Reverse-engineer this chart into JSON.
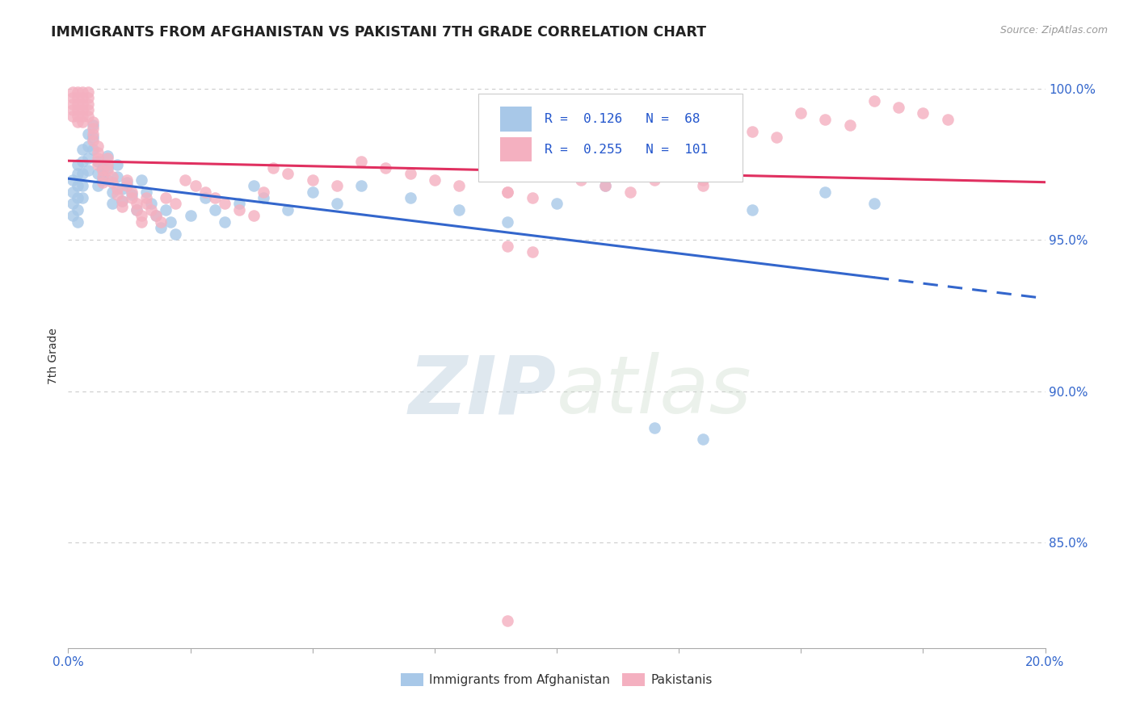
{
  "title": "IMMIGRANTS FROM AFGHANISTAN VS PAKISTANI 7TH GRADE CORRELATION CHART",
  "source": "Source: ZipAtlas.com",
  "ylabel": "7th Grade",
  "legend_blue_R": "0.126",
  "legend_blue_N": "68",
  "legend_pink_R": "0.255",
  "legend_pink_N": "101",
  "blue_color": "#a8c8e8",
  "pink_color": "#f4b0c0",
  "blue_line_color": "#3366cc",
  "pink_line_color": "#e03060",
  "watermark_zip": "ZIP",
  "watermark_atlas": "atlas",
  "x_min": 0.0,
  "x_max": 0.2,
  "y_min": 0.815,
  "y_max": 1.008,
  "right_ytick_vals": [
    1.0,
    0.95,
    0.9,
    0.85
  ],
  "right_ytick_labels": [
    "100.0%",
    "95.0%",
    "90.0%",
    "85.0%"
  ],
  "blue_x": [
    0.001,
    0.001,
    0.001,
    0.001,
    0.002,
    0.002,
    0.002,
    0.002,
    0.002,
    0.002,
    0.003,
    0.003,
    0.003,
    0.003,
    0.003,
    0.004,
    0.004,
    0.004,
    0.004,
    0.005,
    0.005,
    0.005,
    0.006,
    0.006,
    0.006,
    0.007,
    0.007,
    0.008,
    0.008,
    0.008,
    0.009,
    0.009,
    0.01,
    0.01,
    0.011,
    0.011,
    0.012,
    0.013,
    0.014,
    0.015,
    0.016,
    0.017,
    0.018,
    0.019,
    0.02,
    0.021,
    0.022,
    0.025,
    0.028,
    0.03,
    0.032,
    0.035,
    0.038,
    0.04,
    0.045,
    0.05,
    0.055,
    0.06,
    0.07,
    0.08,
    0.09,
    0.1,
    0.11,
    0.12,
    0.13,
    0.14,
    0.155,
    0.165
  ],
  "blue_y": [
    0.97,
    0.966,
    0.962,
    0.958,
    0.975,
    0.972,
    0.968,
    0.964,
    0.96,
    0.956,
    0.98,
    0.976,
    0.972,
    0.968,
    0.964,
    0.985,
    0.981,
    0.977,
    0.973,
    0.988,
    0.984,
    0.98,
    0.976,
    0.972,
    0.968,
    0.974,
    0.97,
    0.978,
    0.974,
    0.97,
    0.966,
    0.962,
    0.975,
    0.971,
    0.967,
    0.963,
    0.969,
    0.965,
    0.96,
    0.97,
    0.966,
    0.962,
    0.958,
    0.954,
    0.96,
    0.956,
    0.952,
    0.958,
    0.964,
    0.96,
    0.956,
    0.962,
    0.968,
    0.964,
    0.96,
    0.966,
    0.962,
    0.968,
    0.964,
    0.96,
    0.956,
    0.962,
    0.968,
    0.888,
    0.884,
    0.96,
    0.966,
    0.962
  ],
  "pink_x": [
    0.001,
    0.001,
    0.001,
    0.001,
    0.001,
    0.002,
    0.002,
    0.002,
    0.002,
    0.002,
    0.002,
    0.003,
    0.003,
    0.003,
    0.003,
    0.003,
    0.003,
    0.004,
    0.004,
    0.004,
    0.004,
    0.004,
    0.005,
    0.005,
    0.005,
    0.005,
    0.006,
    0.006,
    0.006,
    0.006,
    0.007,
    0.007,
    0.007,
    0.008,
    0.008,
    0.008,
    0.009,
    0.009,
    0.01,
    0.01,
    0.011,
    0.011,
    0.012,
    0.012,
    0.013,
    0.013,
    0.014,
    0.014,
    0.015,
    0.015,
    0.016,
    0.016,
    0.017,
    0.018,
    0.019,
    0.02,
    0.022,
    0.024,
    0.026,
    0.028,
    0.03,
    0.032,
    0.035,
    0.038,
    0.04,
    0.042,
    0.045,
    0.05,
    0.055,
    0.06,
    0.065,
    0.07,
    0.075,
    0.08,
    0.09,
    0.1,
    0.11,
    0.12,
    0.13,
    0.09,
    0.095,
    0.1,
    0.105,
    0.11,
    0.115,
    0.12,
    0.125,
    0.13,
    0.135,
    0.14,
    0.145,
    0.15,
    0.155,
    0.16,
    0.165,
    0.17,
    0.175,
    0.18,
    0.09,
    0.095,
    0.09
  ],
  "pink_y": [
    0.999,
    0.997,
    0.995,
    0.993,
    0.991,
    0.999,
    0.997,
    0.995,
    0.993,
    0.991,
    0.989,
    0.999,
    0.997,
    0.995,
    0.993,
    0.991,
    0.989,
    0.999,
    0.997,
    0.995,
    0.993,
    0.991,
    0.989,
    0.987,
    0.985,
    0.983,
    0.981,
    0.979,
    0.977,
    0.975,
    0.973,
    0.971,
    0.969,
    0.977,
    0.975,
    0.973,
    0.971,
    0.969,
    0.967,
    0.965,
    0.963,
    0.961,
    0.97,
    0.968,
    0.966,
    0.964,
    0.962,
    0.96,
    0.958,
    0.956,
    0.964,
    0.962,
    0.96,
    0.958,
    0.956,
    0.964,
    0.962,
    0.97,
    0.968,
    0.966,
    0.964,
    0.962,
    0.96,
    0.958,
    0.966,
    0.974,
    0.972,
    0.97,
    0.968,
    0.976,
    0.974,
    0.972,
    0.97,
    0.968,
    0.966,
    0.974,
    0.972,
    0.97,
    0.968,
    0.966,
    0.964,
    0.972,
    0.97,
    0.968,
    0.966,
    0.974,
    0.972,
    0.97,
    0.978,
    0.986,
    0.984,
    0.992,
    0.99,
    0.988,
    0.996,
    0.994,
    0.992,
    0.99,
    0.948,
    0.946,
    0.824
  ]
}
